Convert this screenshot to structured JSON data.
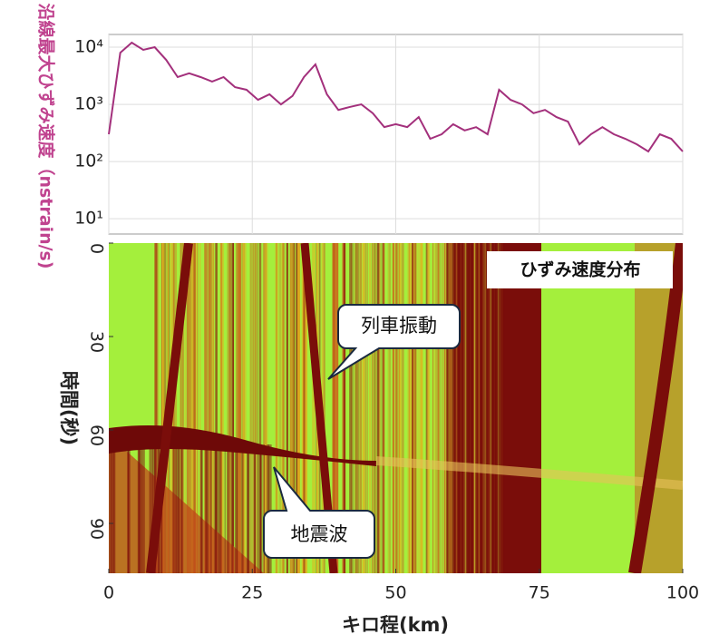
{
  "chart_data": [
    {
      "type": "line",
      "ylabel": "沿線最大ひずみ速度（nstrain/s)",
      "log_y": true,
      "grid": true,
      "xlim": [
        0,
        100
      ],
      "xticks": [
        0,
        25,
        50,
        75,
        100
      ],
      "ylim": [
        5.4,
        16700
      ],
      "yticks": [
        {
          "value": 10,
          "label": "10¹"
        },
        {
          "value": 100,
          "label": "10²"
        },
        {
          "value": 1000,
          "label": "10³"
        },
        {
          "value": 10000,
          "label": "10⁴"
        }
      ],
      "x": [
        0,
        2,
        4,
        6,
        8,
        10,
        12,
        14,
        16,
        18,
        20,
        22,
        24,
        26,
        28,
        30,
        32,
        34,
        36,
        38,
        40,
        42,
        44,
        46,
        48,
        50,
        52,
        54,
        56,
        58,
        60,
        62,
        64,
        66,
        68,
        70,
        72,
        74,
        76,
        78,
        80,
        82,
        84,
        86,
        88,
        90,
        92,
        94,
        96,
        98,
        100
      ],
      "series": [
        {
          "color": "#a3307c",
          "values": [
            300,
            8000,
            12000,
            9000,
            10000,
            6000,
            3000,
            3500,
            3000,
            2500,
            3000,
            2000,
            1800,
            1200,
            1500,
            1000,
            1400,
            3000,
            5000,
            1500,
            800,
            900,
            1000,
            700,
            400,
            450,
            400,
            600,
            250,
            300,
            450,
            350,
            400,
            300,
            1800,
            1200,
            1000,
            700,
            800,
            600,
            500,
            200,
            300,
            400,
            300,
            250,
            200,
            150,
            300,
            250,
            150
          ]
        }
      ]
    },
    {
      "type": "heatmap",
      "invert_y": true,
      "xlabel": "キロ程(km)",
      "ylabel": "時間(秒)",
      "xlim": [
        0,
        100
      ],
      "xticks": [
        0,
        25,
        50,
        75,
        100
      ],
      "ylim": [
        0,
        106
      ],
      "yticks": [
        0,
        30,
        60,
        90
      ],
      "annotations": [
        "ひずみ速度分布",
        "列車振動",
        "地震波"
      ]
    }
  ]
}
